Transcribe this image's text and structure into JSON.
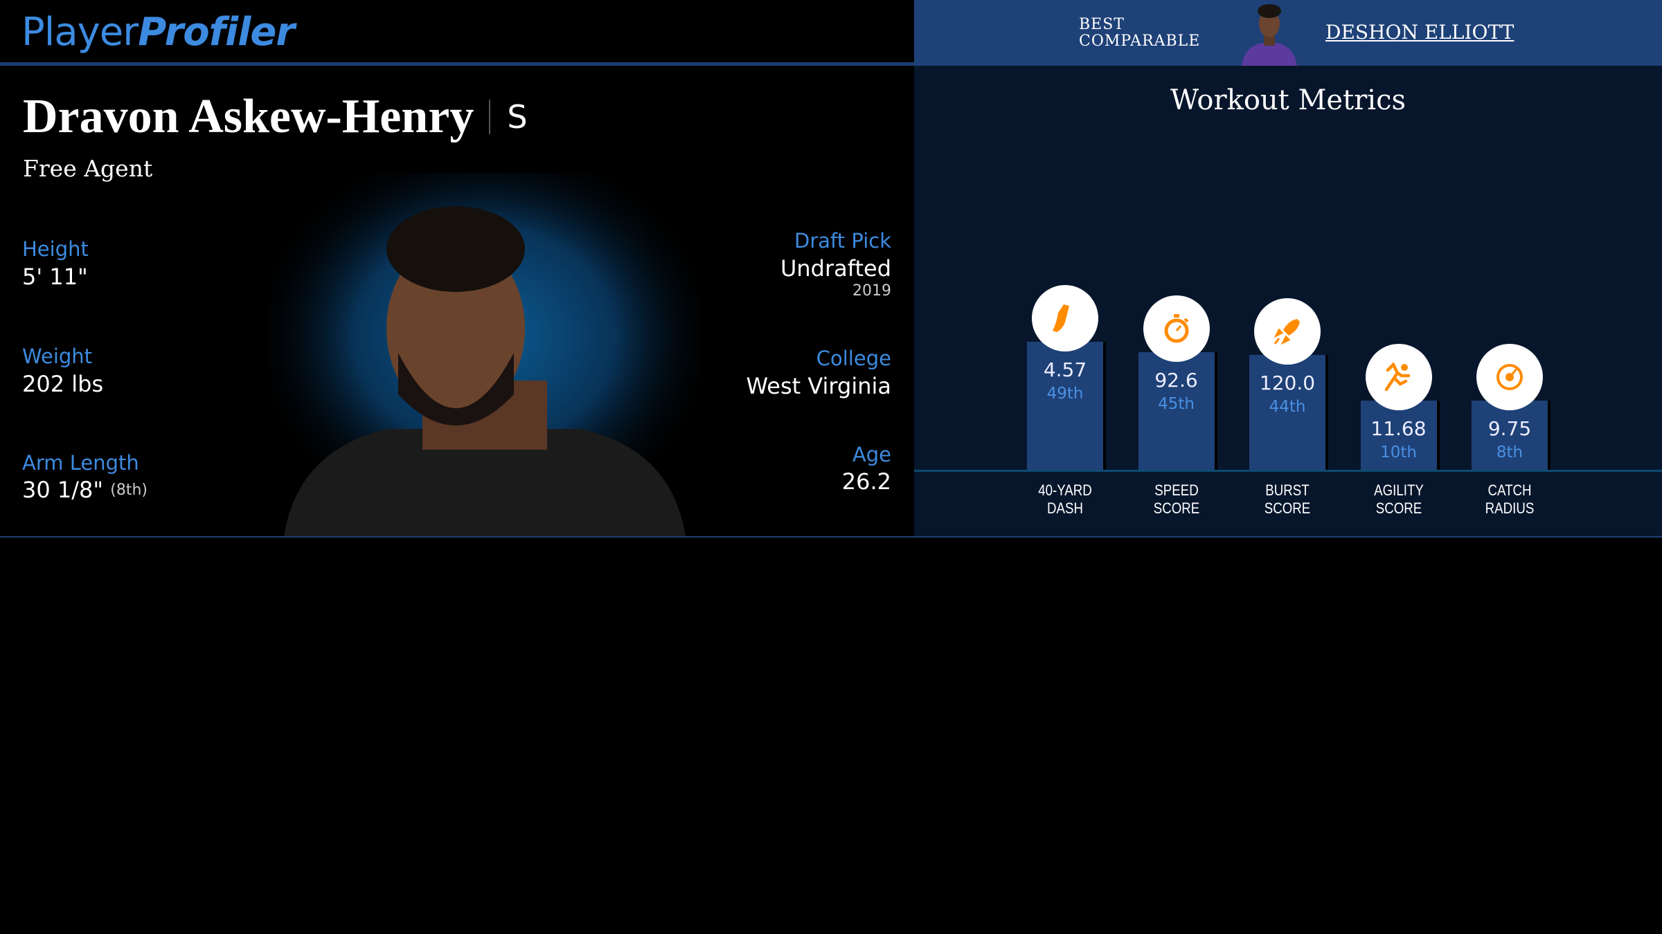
{
  "header": {
    "logo_part1": "Player",
    "logo_part2": "Profiler",
    "best_comparable_label_1": "BEST",
    "best_comparable_label_2": "COMPARABLE",
    "best_comparable_name": "DESHON ELLIOTT"
  },
  "player": {
    "name": "Dravon Askew-Henry",
    "position": "S",
    "team": "Free Agent"
  },
  "info_left": [
    {
      "label": "Height",
      "value": "5' 11\"",
      "extra": ""
    },
    {
      "label": "Weight",
      "value": "202 lbs",
      "extra": ""
    },
    {
      "label": "Arm Length",
      "value": "30 1/8\"",
      "extra": "(8th)"
    }
  ],
  "info_right": [
    {
      "label": "Draft Pick",
      "value": "Undrafted",
      "extra": "2019"
    },
    {
      "label": "College",
      "value": "West Virginia",
      "extra": ""
    },
    {
      "label": "Age",
      "value": "26.2",
      "extra": ""
    }
  ],
  "workout": {
    "title": "Workout Metrics",
    "accent": "#ff8c00",
    "metrics": [
      {
        "label1": "40-YARD",
        "label2": "DASH",
        "value": "4.57",
        "percentile": "49th",
        "pct": 49,
        "icon": "shoe-icon"
      },
      {
        "label1": "SPEED",
        "label2": "SCORE",
        "value": "92.6",
        "percentile": "45th",
        "pct": 45,
        "icon": "stopwatch-icon"
      },
      {
        "label1": "BURST",
        "label2": "SCORE",
        "value": "120.0",
        "percentile": "44th",
        "pct": 44,
        "icon": "rocket-icon"
      },
      {
        "label1": "AGILITY",
        "label2": "SCORE",
        "value": "11.68",
        "percentile": "10th",
        "pct": 10,
        "icon": "runner-icon"
      },
      {
        "label1": "CATCH",
        "label2": "RADIUS",
        "value": "9.75",
        "percentile": "8th",
        "pct": 8,
        "icon": "target-icon"
      }
    ]
  }
}
